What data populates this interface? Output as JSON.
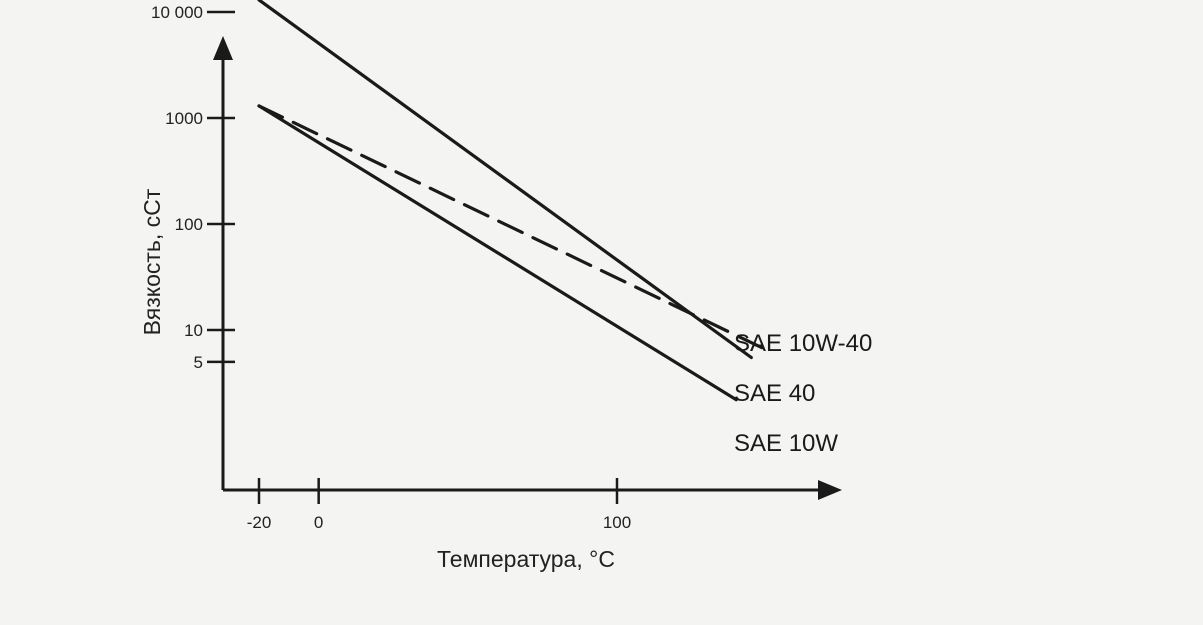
{
  "chart_data": {
    "type": "line",
    "title": "",
    "xlabel": "Температура, °C",
    "ylabel": "Вязкость, сСт",
    "x_scale": "linear",
    "y_scale": "log",
    "xlim": [
      -28,
      170
    ],
    "ylim": [
      1,
      25000
    ],
    "x_ticks": [
      {
        "value": -20,
        "label": "-20"
      },
      {
        "value": 0,
        "label": "0"
      },
      {
        "value": 100,
        "label": "100"
      }
    ],
    "y_ticks": [
      {
        "value": 10000,
        "label": "10 000"
      },
      {
        "value": 1000,
        "label": "1000"
      },
      {
        "value": 100,
        "label": "100"
      },
      {
        "value": 10,
        "label": "10"
      },
      {
        "value": 5,
        "label": "5"
      }
    ],
    "grid": false,
    "legend": "inline",
    "series": [
      {
        "name": "SAE 10W-40",
        "style": "dashed",
        "color": "#1a1a1a",
        "x": [
          -20,
          150
        ],
        "y": [
          1300,
          6.5
        ]
      },
      {
        "name": "SAE 40",
        "style": "solid",
        "color": "#1a1a1a",
        "x": [
          -20,
          145
        ],
        "y": [
          13000,
          5.5
        ]
      },
      {
        "name": "SAE 10W",
        "style": "solid",
        "color": "#1a1a1a",
        "x": [
          -20,
          140
        ],
        "y": [
          1300,
          2.2
        ]
      }
    ]
  }
}
